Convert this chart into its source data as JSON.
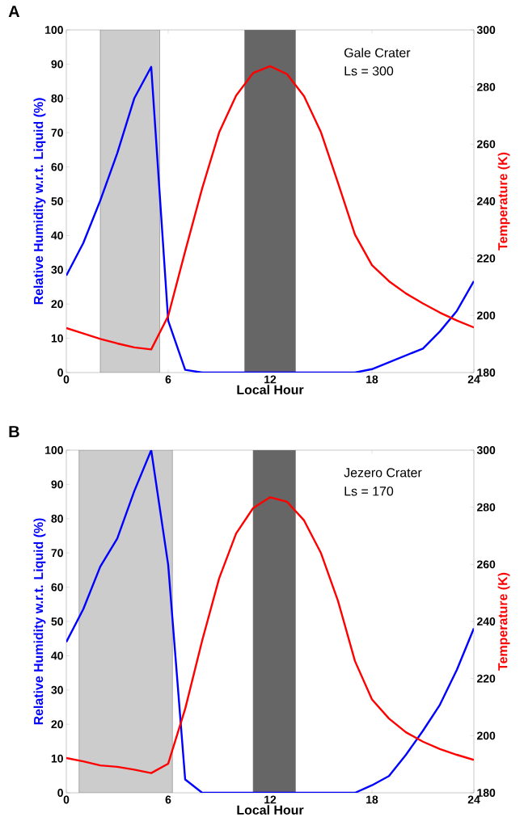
{
  "chart_data": [
    {
      "type": "line",
      "xlabel": "Local Hour",
      "ylabel": "Relative Humidity w.r.t. Liquid (%)",
      "y2label": "Temperature (K)",
      "annotations": [
        "A",
        "Gale Crater",
        "Ls = 300"
      ],
      "x": [
        0,
        1,
        2,
        3,
        4,
        5,
        6,
        7,
        8,
        9,
        10,
        11,
        12,
        13,
        14,
        15,
        16,
        17,
        18,
        19,
        20,
        21,
        22,
        23,
        24
      ],
      "series": [
        {
          "color": "#0000ff",
          "values": [
            28.3,
            37.8,
            50.2,
            64,
            80,
            89.2,
            15.1,
            0.8,
            0,
            0,
            0,
            0,
            0,
            0,
            0,
            0,
            0,
            0,
            1,
            3,
            5,
            7,
            12,
            18,
            26.7
          ]
        },
        {
          "color": "#ff0000",
          "axis": "y2",
          "values": [
            195.6,
            193.7,
            191.8,
            190.2,
            188.8,
            188.1,
            199.8,
            222.5,
            244.5,
            264.1,
            277,
            284.9,
            287.3,
            284.5,
            276.8,
            264.1,
            246.4,
            228.3,
            217.6,
            212,
            207.7,
            204.2,
            201,
            198.2,
            195.8
          ]
        }
      ],
      "bands": [
        {
          "axis": "x",
          "from": 2,
          "to": 5.5,
          "color": "#cccccc"
        },
        {
          "axis": "x",
          "from": 10.5,
          "to": 13.5,
          "color": "#666666"
        }
      ],
      "xlim": [
        0,
        24
      ],
      "ylim": [
        0,
        100
      ],
      "y2lim": [
        180,
        300
      ],
      "xticks": [
        0,
        6,
        12,
        18,
        24
      ],
      "yticks": [
        0,
        10,
        20,
        30,
        40,
        50,
        60,
        70,
        80,
        90,
        100
      ],
      "y2ticks": [
        180,
        200,
        220,
        240,
        260,
        280,
        300
      ]
    },
    {
      "type": "line",
      "xlabel": "Local Hour",
      "ylabel": "Relative Humidity w.r.t. Liquid (%)",
      "y2label": "Temperature (K)",
      "annotations": [
        "B",
        "Jezero Crater",
        "Ls = 170"
      ],
      "x": [
        0,
        1,
        2,
        3,
        4,
        5,
        6,
        7,
        8,
        9,
        10,
        11,
        12,
        13,
        14,
        15,
        16,
        17,
        18,
        19,
        20,
        21,
        22,
        23,
        24
      ],
      "series": [
        {
          "color": "#0000ff",
          "values": [
            44,
            53.6,
            66,
            74.2,
            88,
            100,
            66.5,
            3.9,
            0,
            0,
            0,
            0,
            0,
            0,
            0,
            0,
            0,
            0,
            2.2,
            4.9,
            11.1,
            18.1,
            25.7,
            35.9,
            48
          ]
        },
        {
          "color": "#ff0000",
          "axis": "y2",
          "values": [
            192.2,
            191,
            189.6,
            189.1,
            188.1,
            186.9,
            190.2,
            209.4,
            233.3,
            255.1,
            270.8,
            279.7,
            283.5,
            281.9,
            275.4,
            263.9,
            247.2,
            226.1,
            212.7,
            206,
            201.2,
            197.9,
            195.3,
            193.3,
            191.5
          ]
        }
      ],
      "bands": [
        {
          "axis": "x",
          "from": 0.75,
          "to": 6.25,
          "color": "#cccccc"
        },
        {
          "axis": "x",
          "from": 11,
          "to": 13.5,
          "color": "#666666"
        }
      ],
      "xlim": [
        0,
        24
      ],
      "ylim": [
        0,
        100
      ],
      "y2lim": [
        180,
        300
      ],
      "xticks": [
        0,
        6,
        12,
        18,
        24
      ],
      "yticks": [
        0,
        10,
        20,
        30,
        40,
        50,
        60,
        70,
        80,
        90,
        100
      ],
      "y2ticks": [
        180,
        200,
        220,
        240,
        260,
        280,
        300
      ]
    }
  ]
}
